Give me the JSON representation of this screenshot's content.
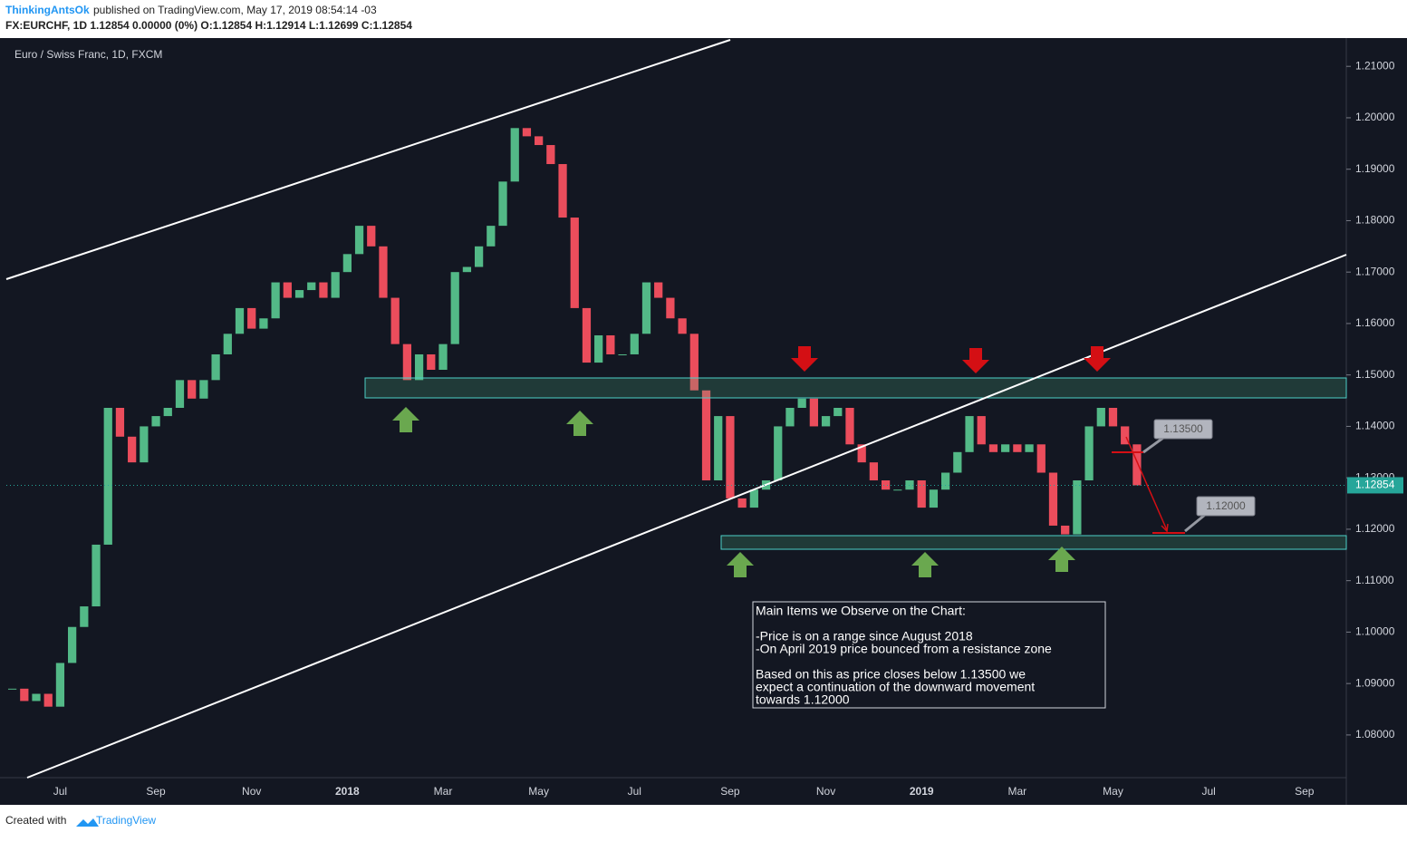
{
  "header": {
    "author": "ThinkingAntsOk",
    "published": "published on TradingView.com, May 17, 2019 08:54:14 -03",
    "quote": "FX:EURCHF, 1D  1.12854 0.00000 (0%) O:1.12854 H:1.12914 L:1.12699 C:1.12854"
  },
  "footer": {
    "created": "Created with",
    "brand": "TradingView"
  },
  "chart_data": {
    "type": "candlestick",
    "title": "Euro / Swiss Franc, 1D, FXCM",
    "categories": [
      null,
      null,
      null,
      null,
      "Jul",
      null,
      null,
      null,
      null,
      null,
      null,
      null,
      "Sep",
      null,
      null,
      null,
      null,
      null,
      null,
      null,
      "Nov",
      null,
      null,
      null,
      null,
      null,
      null,
      null,
      "2018",
      null,
      null,
      null,
      null,
      null,
      null,
      null,
      "Mar",
      null,
      null,
      null,
      null,
      null,
      null,
      null,
      "May",
      null,
      null,
      null,
      null,
      null,
      null,
      null,
      "Jul",
      null,
      null,
      null,
      null,
      null,
      null,
      null,
      "Sep",
      null,
      null,
      null,
      null,
      null,
      null,
      null,
      "Nov",
      null,
      null,
      null,
      null,
      null,
      null,
      null,
      "2019",
      null,
      null,
      null,
      null,
      null,
      null,
      null,
      "Mar",
      null,
      null,
      null,
      null,
      null,
      null,
      null,
      "May",
      null,
      null,
      null,
      null,
      null,
      null,
      null,
      "Jul",
      null,
      null,
      null,
      null,
      null,
      null,
      null,
      "Sep",
      null,
      null,
      null
    ],
    "values": [
      1.089,
      1.0866,
      1.088,
      1.0855,
      1.094,
      1.101,
      1.105,
      1.117,
      1.1436,
      1.138,
      1.133,
      1.14,
      1.142,
      1.1436,
      1.149,
      1.1454,
      1.149,
      1.154,
      1.158,
      1.163,
      1.159,
      1.161,
      1.168,
      1.165,
      1.1665,
      1.168,
      1.165,
      1.17,
      1.1735,
      1.179,
      1.175,
      1.165,
      1.156,
      1.149,
      1.154,
      1.151,
      1.156,
      1.17,
      1.171,
      1.175,
      1.179,
      1.1876,
      1.198,
      1.1964,
      1.1947,
      1.191,
      1.1806,
      1.163,
      1.1524,
      1.1577,
      1.154,
      1.154,
      1.158,
      1.168,
      1.165,
      1.161,
      1.158,
      1.147,
      1.1295,
      1.142,
      1.126,
      1.1242,
      1.1277,
      1.1295,
      1.14,
      1.1436,
      1.1454,
      1.14,
      1.142,
      1.1436,
      1.1365,
      1.133,
      1.1295,
      1.1277,
      1.1277,
      1.1295,
      1.1242,
      1.1277,
      1.131,
      1.135,
      1.142,
      1.1365,
      1.135,
      1.1365,
      1.135,
      1.1365,
      1.131,
      1.1207,
      1.119,
      1.1295,
      1.14,
      1.1436,
      1.14,
      1.1365,
      1.12854,
      null,
      null,
      null,
      null,
      null,
      null,
      null,
      null,
      null,
      null,
      null,
      null,
      null,
      null,
      null,
      null,
      null
    ],
    "up_color": "#53b987",
    "down_color": "#eb4d5c",
    "ylim": [
      1.0717,
      1.2155
    ],
    "yticks": [
      {
        "value": 1.08,
        "label": "1.08000"
      },
      {
        "value": 1.09,
        "label": "1.09000"
      },
      {
        "value": 1.1,
        "label": "1.10000"
      },
      {
        "value": 1.11,
        "label": "1.11000"
      },
      {
        "value": 1.12,
        "label": "1.12000"
      },
      {
        "value": 1.13,
        "label": "1.13000"
      },
      {
        "value": 1.14,
        "label": "1.14000"
      },
      {
        "value": 1.15,
        "label": "1.15000"
      },
      {
        "value": 1.16,
        "label": "1.16000"
      },
      {
        "value": 1.17,
        "label": "1.17000"
      },
      {
        "value": 1.18,
        "label": "1.18000"
      },
      {
        "value": 1.19,
        "label": "1.19000"
      },
      {
        "value": 1.2,
        "label": "1.20000"
      },
      {
        "value": 1.21,
        "label": "1.21000"
      }
    ],
    "last_price": {
      "value": 1.12854,
      "label": "1.12854"
    },
    "annotations": {
      "callouts": [
        "1.13500",
        "1.12000"
      ],
      "note": [
        "Main Items we Observe on the Chart:",
        "-Price is on a range since August 2018",
        "-On April 2019 price bounced from a resistance zone",
        "Based on this as price closes below 1.13500 we",
        "expect a continuation of the downward movement",
        "towards 1.12000"
      ]
    }
  }
}
